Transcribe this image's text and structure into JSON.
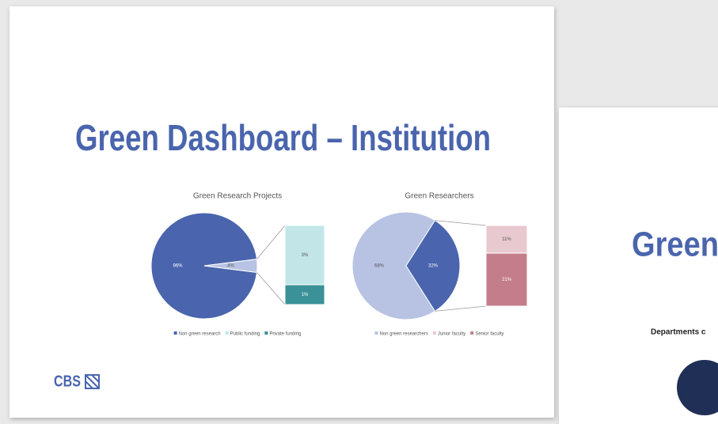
{
  "slide": {
    "title": "Green Dashboard – Institution",
    "logo": "CBS"
  },
  "next_slide": {
    "title": "Green",
    "subtitle": "Departments c"
  },
  "chart_data": [
    {
      "type": "pie",
      "title": "Green Research Projects",
      "pie_values": [
        96,
        4
      ],
      "pie_value_labels": [
        "96%",
        "4%"
      ],
      "pie_colors": [
        "#4a65ad",
        "#b8c3e3"
      ],
      "bar_values": [
        3,
        1
      ],
      "bar_value_labels": [
        "3%",
        "1%"
      ],
      "bar_colors": [
        "#c2e6e8",
        "#3a9197"
      ],
      "legend": [
        {
          "name": "Non green research",
          "color": "#4a65ad"
        },
        {
          "name": "Public funding",
          "color": "#c2e6e8"
        },
        {
          "name": "Private funding",
          "color": "#3a9197"
        }
      ]
    },
    {
      "type": "pie",
      "title": "Green Researchers",
      "pie_values": [
        68,
        32
      ],
      "pie_value_labels": [
        "68%",
        "32%"
      ],
      "pie_colors": [
        "#b8c3e3",
        "#4a65ad"
      ],
      "bar_values": [
        11,
        21
      ],
      "bar_value_labels": [
        "11%",
        "21%"
      ],
      "bar_colors": [
        "#e8c9cf",
        "#c47d8a"
      ],
      "legend": [
        {
          "name": "Non green researchers",
          "color": "#b8c3e3"
        },
        {
          "name": "Junior faculty",
          "color": "#e8c9cf"
        },
        {
          "name": "Senior faculty",
          "color": "#c47d8a"
        }
      ]
    }
  ]
}
